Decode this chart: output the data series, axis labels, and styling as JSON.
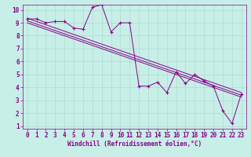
{
  "xlabel": "Windchill (Refroidissement éolien,°C)",
  "bg_color": "#c8eee8",
  "grid_color": "#aaddcc",
  "line_color": "#880088",
  "x_data": [
    0,
    1,
    2,
    3,
    4,
    5,
    6,
    7,
    8,
    9,
    10,
    11,
    12,
    13,
    14,
    15,
    16,
    17,
    18,
    19,
    20,
    21,
    22,
    23
  ],
  "y_data": [
    9.3,
    9.3,
    9.0,
    9.1,
    9.1,
    8.6,
    8.5,
    10.2,
    10.4,
    8.3,
    9.0,
    9.0,
    4.1,
    4.1,
    4.4,
    3.6,
    5.2,
    4.3,
    5.0,
    4.5,
    4.1,
    2.2,
    1.2,
    3.5
  ],
  "trend_lines": [
    {
      "x0": 0,
      "y0": 9.35,
      "x1": 23,
      "y1": 3.6
    },
    {
      "x0": 0,
      "y0": 9.15,
      "x1": 23,
      "y1": 3.4
    },
    {
      "x0": 0,
      "y0": 9.0,
      "x1": 23,
      "y1": 3.25
    }
  ],
  "xlim": [
    -0.5,
    23.5
  ],
  "ylim": [
    0.8,
    10.4
  ],
  "xticks": [
    0,
    1,
    2,
    3,
    4,
    5,
    6,
    7,
    8,
    9,
    10,
    11,
    12,
    13,
    14,
    15,
    16,
    17,
    18,
    19,
    20,
    21,
    22,
    23
  ],
  "yticks": [
    1,
    2,
    3,
    4,
    5,
    6,
    7,
    8,
    9,
    10
  ],
  "tick_fontsize": 5.5,
  "xlabel_fontsize": 5.5
}
